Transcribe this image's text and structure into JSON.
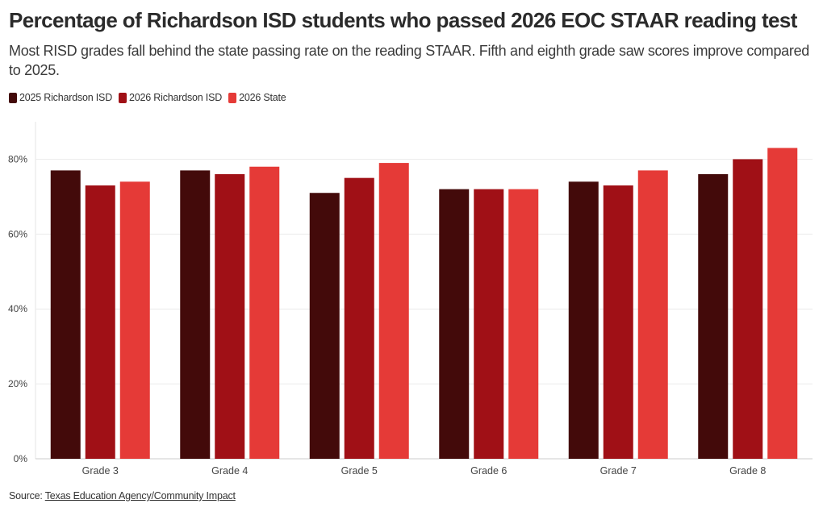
{
  "chart_data": {
    "type": "bar",
    "title": "Percentage of Richardson ISD students who passed 2026 EOC STAAR reading test",
    "subtitle": "Most RISD grades fall behind the state passing rate on the reading STAAR. Fifth and eighth grade saw scores improve compared to 2025.",
    "categories": [
      "Grade 3",
      "Grade 4",
      "Grade 5",
      "Grade 6",
      "Grade 7",
      "Grade 8"
    ],
    "series": [
      {
        "name": "2025 Richardson ISD",
        "color": "#430a0a",
        "values": [
          77,
          77,
          71,
          72,
          74,
          76
        ]
      },
      {
        "name": "2026 Richardson ISD",
        "color": "#a01016",
        "values": [
          73,
          76,
          75,
          72,
          73,
          80
        ]
      },
      {
        "name": "2026 State",
        "color": "#e53a37",
        "values": [
          74,
          78,
          79,
          72,
          77,
          83
        ]
      }
    ],
    "yticks": [
      "0%",
      "20%",
      "40%",
      "60%",
      "80%"
    ],
    "ytick_values": [
      0,
      20,
      40,
      60,
      80
    ],
    "ylim": [
      0,
      90
    ],
    "grid": true,
    "legend": "top-left"
  },
  "source": {
    "prefix": "Source: ",
    "link_text": "Texas Education Agency/Community Impact"
  }
}
